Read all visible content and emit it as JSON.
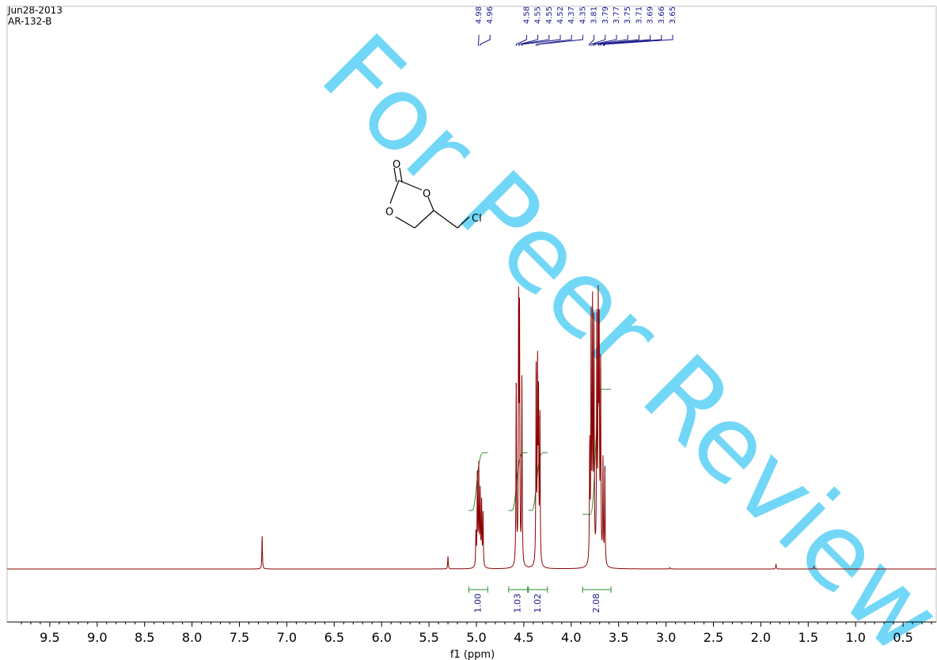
{
  "header": {
    "date": "Jun28-2013",
    "sample": "AR-132-B"
  },
  "watermark": "For Peer Review",
  "molecule": {
    "atoms": [
      "O",
      "O",
      "O",
      "Cl"
    ]
  },
  "colors": {
    "spectrum": "#8b0000",
    "integral": "#2e8b2e",
    "labels": "#1a1a8c",
    "watermark": "#00b7f0"
  },
  "chart_data": {
    "type": "line",
    "title": "",
    "xlabel": "f1 (ppm)",
    "ylabel": "",
    "xlim": [
      9.95,
      0.15
    ],
    "x_reversed": true,
    "x_ticks": [
      "9.5",
      "9.0",
      "8.5",
      "8.0",
      "7.5",
      "7.0",
      "6.5",
      "6.0",
      "5.5",
      "5.0",
      "4.5",
      "4.0",
      "3.5",
      "3.0",
      "2.5",
      "2.0",
      "1.5",
      "1.0",
      "0.5"
    ],
    "peak_labels": [
      "4.98",
      "4.96",
      "4.58",
      "4.55",
      "4.55",
      "4.52",
      "4.37",
      "4.35",
      "3.81",
      "3.79",
      "3.77",
      "3.75",
      "3.71",
      "3.69",
      "3.66",
      "3.65"
    ],
    "peaks": [
      {
        "ppm": 7.26,
        "height": 0.13
      },
      {
        "ppm": 5.3,
        "height": 0.05
      },
      {
        "ppm": 5.005,
        "height": 0.13
      },
      {
        "ppm": 4.99,
        "height": 0.36
      },
      {
        "ppm": 4.975,
        "height": 0.39
      },
      {
        "ppm": 4.96,
        "height": 0.29
      },
      {
        "ppm": 4.945,
        "height": 0.25
      },
      {
        "ppm": 4.93,
        "height": 0.21
      },
      {
        "ppm": 4.58,
        "height": 0.71
      },
      {
        "ppm": 4.555,
        "height": 1.0
      },
      {
        "ppm": 4.545,
        "height": 0.95
      },
      {
        "ppm": 4.52,
        "height": 0.74
      },
      {
        "ppm": 4.37,
        "height": 0.77
      },
      {
        "ppm": 4.355,
        "height": 0.75
      },
      {
        "ppm": 4.345,
        "height": 0.62
      },
      {
        "ppm": 4.33,
        "height": 0.58
      },
      {
        "ppm": 3.805,
        "height": 0.46
      },
      {
        "ppm": 3.79,
        "height": 0.95
      },
      {
        "ppm": 3.775,
        "height": 0.99
      },
      {
        "ppm": 3.76,
        "height": 0.93
      },
      {
        "ppm": 3.73,
        "height": 0.94
      },
      {
        "ppm": 3.715,
        "height": 0.96
      },
      {
        "ppm": 3.705,
        "height": 0.86
      },
      {
        "ppm": 3.69,
        "height": 0.77
      },
      {
        "ppm": 3.665,
        "height": 0.41
      },
      {
        "ppm": 3.645,
        "height": 0.38
      },
      {
        "ppm": 2.96,
        "height": 0.006
      },
      {
        "ppm": 1.84,
        "height": 0.02
      },
      {
        "ppm": 1.44,
        "height": 0.01
      }
    ],
    "integrals": [
      {
        "from": 5.08,
        "to": 4.88,
        "value": "1.00"
      },
      {
        "from": 4.66,
        "to": 4.46,
        "value": "1.03"
      },
      {
        "from": 4.45,
        "to": 4.25,
        "value": "1.02"
      },
      {
        "from": 3.88,
        "to": 3.58,
        "value": "2.08"
      }
    ]
  }
}
